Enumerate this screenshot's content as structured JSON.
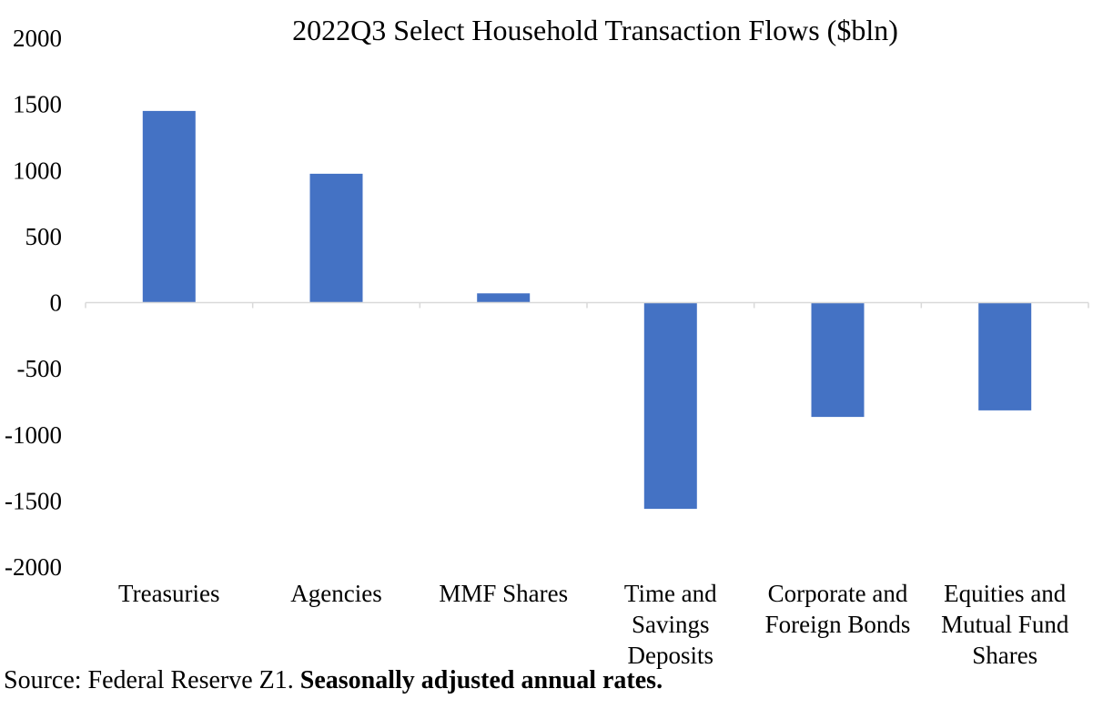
{
  "chart_data": {
    "type": "bar",
    "title": "2022Q3 Select Household Transaction Flows ($bln)",
    "xlabel": "",
    "ylabel": "",
    "categories": [
      [
        "Treasuries"
      ],
      [
        "Agencies"
      ],
      [
        "MMF Shares"
      ],
      [
        "Time and",
        "Savings",
        "Deposits"
      ],
      [
        "Corporate and",
        "Foreign Bonds"
      ],
      [
        "Equities and",
        "Mutual Fund",
        "Shares"
      ]
    ],
    "values": [
      1450,
      975,
      70,
      -1560,
      -865,
      -815
    ],
    "ylim": [
      -2000,
      2000
    ],
    "yticks": [
      "2000",
      "1500",
      "1000",
      "500",
      "0",
      "-500",
      "-1000",
      "-1500",
      "-2000"
    ],
    "ytick_values": [
      2000,
      1500,
      1000,
      500,
      0,
      -500,
      -1000,
      -1500,
      -2000
    ],
    "bar_color": "#4472C4",
    "grid": false,
    "legend": "none"
  },
  "footer": {
    "source_label": "Source: Federal Reserve Z1. ",
    "source_note": "Seasonally adjusted annual rates."
  }
}
